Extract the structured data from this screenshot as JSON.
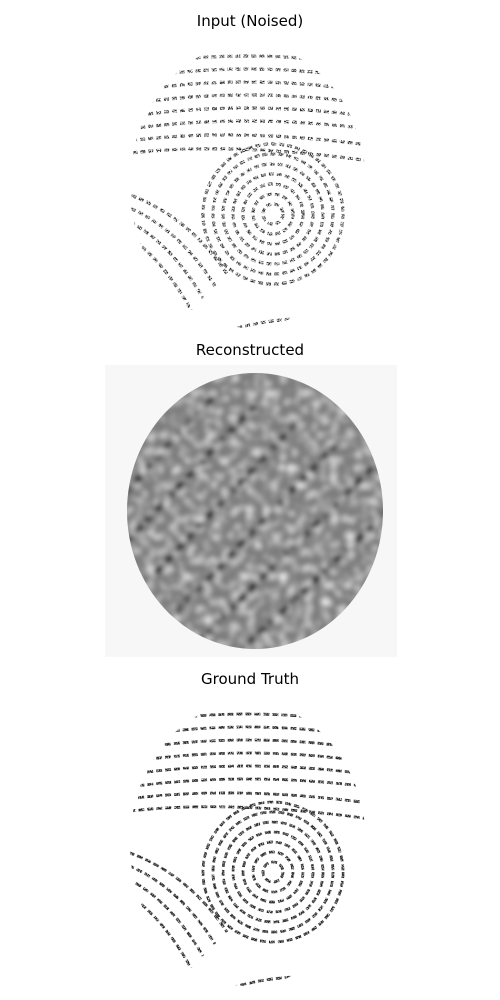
{
  "panels": [
    {
      "title": "Input (Noised)",
      "style": "noised"
    },
    {
      "title": "Reconstructed",
      "style": "reconstructed"
    },
    {
      "title": "Ground Truth",
      "style": "ground-truth"
    }
  ],
  "colors": {
    "background": "#ffffff",
    "ink": "#000000",
    "reconstructed_background": "#f7f7f7"
  }
}
